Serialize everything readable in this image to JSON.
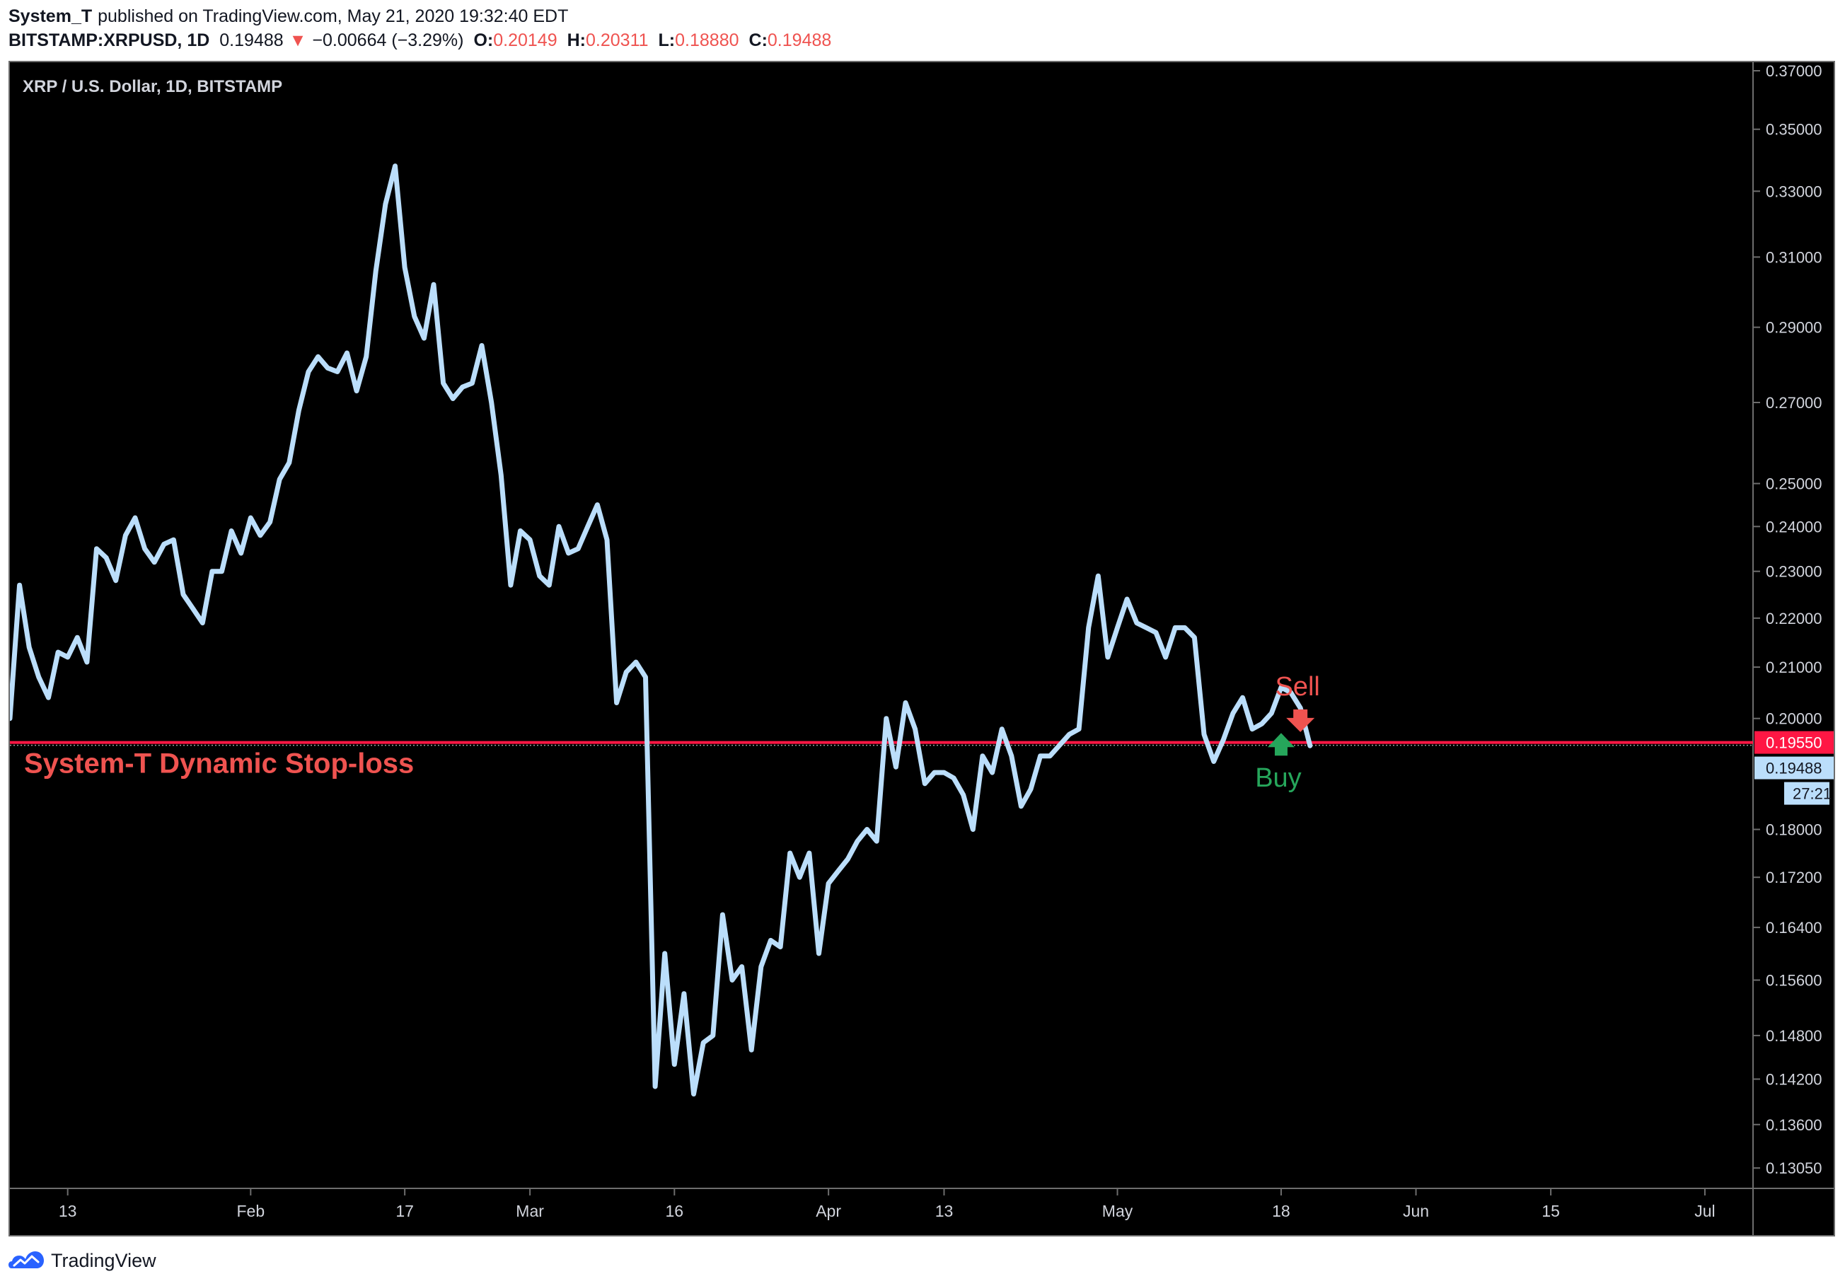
{
  "header": {
    "author": "System_T",
    "published": "published on TradingView.com, May 21, 2020 19:32:40 EDT",
    "symbol": "BITSTAMP:XRPUSD, 1D",
    "last": "0.19488",
    "change_arrow": "▼",
    "change": "−0.00664 (−3.29%)",
    "o_label": "O:",
    "o_value": "0.20149",
    "h_label": "H:",
    "h_value": "0.20311",
    "l_label": "L:",
    "l_value": "0.18880",
    "c_label": "C:",
    "c_value": "0.19488"
  },
  "footer": {
    "brand": "TradingView",
    "logo_icon": "tradingview-logo-icon"
  },
  "colors": {
    "background": "#000000",
    "line": "#bbdefb",
    "stoploss": "#ff1744",
    "sell": "#ef5350",
    "buy": "#26a65b",
    "axis_text": "#d1d4dc"
  },
  "chart_data": {
    "type": "line",
    "title": "XRP / U.S. Dollar, 1D, BITSTAMP",
    "yscale": "log",
    "ylim": [
      0.128,
      0.373
    ],
    "xlim": [
      "2020-01-07",
      "2020-07-06"
    ],
    "y_ticks": [
      "0.37000",
      "0.35000",
      "0.33000",
      "0.31000",
      "0.29000",
      "0.27000",
      "0.25000",
      "0.24000",
      "0.23000",
      "0.22000",
      "0.21000",
      "0.20000",
      "0.18000",
      "0.17200",
      "0.16400",
      "0.15600",
      "0.14800",
      "0.14200",
      "0.13600",
      "0.13050"
    ],
    "x_ticks": [
      {
        "label": "13",
        "date": "2020-01-13"
      },
      {
        "label": "Feb",
        "date": "2020-02-01"
      },
      {
        "label": "17",
        "date": "2020-02-17"
      },
      {
        "label": "Mar",
        "date": "2020-03-01"
      },
      {
        "label": "16",
        "date": "2020-03-16"
      },
      {
        "label": "Apr",
        "date": "2020-04-01"
      },
      {
        "label": "13",
        "date": "2020-04-13"
      },
      {
        "label": "May",
        "date": "2020-05-01"
      },
      {
        "label": "18",
        "date": "2020-05-18"
      },
      {
        "label": "Jun",
        "date": "2020-06-01"
      },
      {
        "label": "15",
        "date": "2020-06-15"
      },
      {
        "label": "Jul",
        "date": "2020-07-01"
      }
    ],
    "series": [
      {
        "values": [
          [
            "2020-01-07",
            0.2
          ],
          [
            "2020-01-08",
            0.227
          ],
          [
            "2020-01-09",
            0.214
          ],
          [
            "2020-01-10",
            0.208
          ],
          [
            "2020-01-11",
            0.204
          ],
          [
            "2020-01-12",
            0.213
          ],
          [
            "2020-01-13",
            0.212
          ],
          [
            "2020-01-14",
            0.216
          ],
          [
            "2020-01-15",
            0.211
          ],
          [
            "2020-01-16",
            0.235
          ],
          [
            "2020-01-17",
            0.233
          ],
          [
            "2020-01-18",
            0.228
          ],
          [
            "2020-01-19",
            0.238
          ],
          [
            "2020-01-20",
            0.242
          ],
          [
            "2020-01-21",
            0.235
          ],
          [
            "2020-01-22",
            0.232
          ],
          [
            "2020-01-23",
            0.236
          ],
          [
            "2020-01-24",
            0.237
          ],
          [
            "2020-01-25",
            0.225
          ],
          [
            "2020-01-26",
            0.222
          ],
          [
            "2020-01-27",
            0.219
          ],
          [
            "2020-01-28",
            0.23
          ],
          [
            "2020-01-29",
            0.23
          ],
          [
            "2020-01-30",
            0.239
          ],
          [
            "2020-01-31",
            0.234
          ],
          [
            "2020-02-01",
            0.242
          ],
          [
            "2020-02-02",
            0.238
          ],
          [
            "2020-02-03",
            0.241
          ],
          [
            "2020-02-04",
            0.251
          ],
          [
            "2020-02-05",
            0.255
          ],
          [
            "2020-02-06",
            0.268
          ],
          [
            "2020-02-07",
            0.278
          ],
          [
            "2020-02-08",
            0.282
          ],
          [
            "2020-02-09",
            0.279
          ],
          [
            "2020-02-10",
            0.278
          ],
          [
            "2020-02-11",
            0.283
          ],
          [
            "2020-02-12",
            0.273
          ],
          [
            "2020-02-13",
            0.282
          ],
          [
            "2020-02-14",
            0.306
          ],
          [
            "2020-02-15",
            0.326
          ],
          [
            "2020-02-16",
            0.338
          ],
          [
            "2020-02-17",
            0.307
          ],
          [
            "2020-02-18",
            0.293
          ],
          [
            "2020-02-19",
            0.287
          ],
          [
            "2020-02-20",
            0.302
          ],
          [
            "2020-02-21",
            0.275
          ],
          [
            "2020-02-22",
            0.271
          ],
          [
            "2020-02-23",
            0.274
          ],
          [
            "2020-02-24",
            0.275
          ],
          [
            "2020-02-25",
            0.285
          ],
          [
            "2020-02-26",
            0.27
          ],
          [
            "2020-02-27",
            0.252
          ],
          [
            "2020-02-28",
            0.227
          ],
          [
            "2020-02-29",
            0.239
          ],
          [
            "2020-03-01",
            0.237
          ],
          [
            "2020-03-02",
            0.229
          ],
          [
            "2020-03-03",
            0.227
          ],
          [
            "2020-03-04",
            0.24
          ],
          [
            "2020-03-05",
            0.234
          ],
          [
            "2020-03-06",
            0.235
          ],
          [
            "2020-03-07",
            0.24
          ],
          [
            "2020-03-08",
            0.245
          ],
          [
            "2020-03-09",
            0.237
          ],
          [
            "2020-03-10",
            0.203
          ],
          [
            "2020-03-11",
            0.209
          ],
          [
            "2020-03-12",
            0.211
          ],
          [
            "2020-03-13",
            0.208
          ],
          [
            "2020-03-14",
            0.141
          ],
          [
            "2020-03-15",
            0.16
          ],
          [
            "2020-03-16",
            0.144
          ],
          [
            "2020-03-17",
            0.154
          ],
          [
            "2020-03-18",
            0.14
          ],
          [
            "2020-03-19",
            0.147
          ],
          [
            "2020-03-20",
            0.148
          ],
          [
            "2020-03-21",
            0.166
          ],
          [
            "2020-03-22",
            0.156
          ],
          [
            "2020-03-23",
            0.158
          ],
          [
            "2020-03-24",
            0.146
          ],
          [
            "2020-03-25",
            0.158
          ],
          [
            "2020-03-26",
            0.162
          ],
          [
            "2020-03-27",
            0.161
          ],
          [
            "2020-03-28",
            0.176
          ],
          [
            "2020-03-29",
            0.172
          ],
          [
            "2020-03-30",
            0.176
          ],
          [
            "2020-03-31",
            0.16
          ],
          [
            "2020-04-01",
            0.171
          ],
          [
            "2020-04-02",
            0.173
          ],
          [
            "2020-04-03",
            0.175
          ],
          [
            "2020-04-04",
            0.178
          ],
          [
            "2020-04-05",
            0.18
          ],
          [
            "2020-04-06",
            0.178
          ],
          [
            "2020-04-07",
            0.2
          ],
          [
            "2020-04-08",
            0.191
          ],
          [
            "2020-04-09",
            0.203
          ],
          [
            "2020-04-10",
            0.198
          ],
          [
            "2020-04-11",
            0.188
          ],
          [
            "2020-04-12",
            0.19
          ],
          [
            "2020-04-13",
            0.19
          ],
          [
            "2020-04-14",
            0.189
          ],
          [
            "2020-04-15",
            0.186
          ],
          [
            "2020-04-16",
            0.18
          ],
          [
            "2020-04-17",
            0.193
          ],
          [
            "2020-04-18",
            0.19
          ],
          [
            "2020-04-19",
            0.198
          ],
          [
            "2020-04-20",
            0.193
          ],
          [
            "2020-04-21",
            0.184
          ],
          [
            "2020-04-22",
            0.187
          ],
          [
            "2020-04-23",
            0.193
          ],
          [
            "2020-04-24",
            0.193
          ],
          [
            "2020-04-25",
            0.195
          ],
          [
            "2020-04-26",
            0.197
          ],
          [
            "2020-04-27",
            0.198
          ],
          [
            "2020-04-28",
            0.218
          ],
          [
            "2020-04-29",
            0.229
          ],
          [
            "2020-04-30",
            0.212
          ],
          [
            "2020-05-01",
            0.218
          ],
          [
            "2020-05-02",
            0.224
          ],
          [
            "2020-05-03",
            0.219
          ],
          [
            "2020-05-04",
            0.218
          ],
          [
            "2020-05-05",
            0.217
          ],
          [
            "2020-05-06",
            0.212
          ],
          [
            "2020-05-07",
            0.218
          ],
          [
            "2020-05-08",
            0.218
          ],
          [
            "2020-05-09",
            0.216
          ],
          [
            "2020-05-10",
            0.197
          ],
          [
            "2020-05-11",
            0.192
          ],
          [
            "2020-05-12",
            0.196
          ],
          [
            "2020-05-13",
            0.201
          ],
          [
            "2020-05-14",
            0.204
          ],
          [
            "2020-05-15",
            0.198
          ],
          [
            "2020-05-16",
            0.199
          ],
          [
            "2020-05-17",
            0.201
          ],
          [
            "2020-05-18",
            0.206
          ],
          [
            "2020-05-19",
            0.205
          ],
          [
            "2020-05-20",
            0.202
          ],
          [
            "2020-05-21",
            0.1949
          ]
        ]
      }
    ],
    "stoploss": {
      "value": 0.1955,
      "label": "System-T Dynamic Stop-loss",
      "price_label": "0.19550"
    },
    "last_price": {
      "value": 0.19488,
      "price_label": "0.19488",
      "countdown": "27:21"
    },
    "signals": [
      {
        "type": "sell",
        "label": "Sell",
        "date": "2020-05-20",
        "value": 0.202,
        "icon": "arrow-down-icon"
      },
      {
        "type": "buy",
        "label": "Buy",
        "date": "2020-05-18",
        "value": 0.197,
        "icon": "arrow-up-icon"
      }
    ],
    "grid": false,
    "legend": "none"
  }
}
